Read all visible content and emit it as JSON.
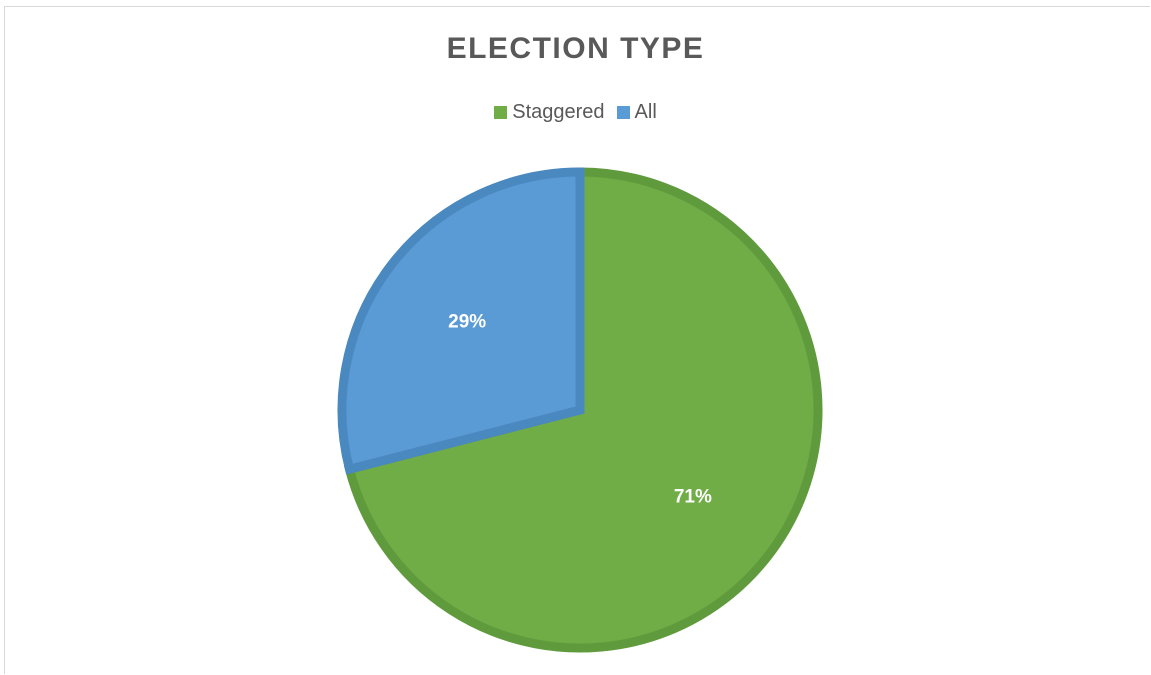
{
  "chart_data": {
    "type": "pie",
    "title": "ELECTION TYPE",
    "legend": "top",
    "categories": [
      "Staggered",
      "All"
    ],
    "values": [
      71,
      29
    ],
    "labels": [
      "71%",
      "29%"
    ],
    "colors": [
      "#70ad47",
      "#5b9bd5"
    ],
    "border_colors": [
      "#5f9b3c",
      "#4a88c0"
    ]
  }
}
